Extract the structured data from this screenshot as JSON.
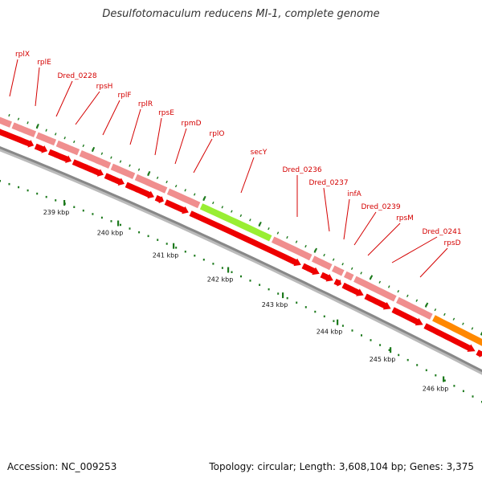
{
  "title": "Desulfotomaculum reducens MI-1, complete genome",
  "footer": {
    "accession": "Accession: NC_009253",
    "summary": "Topology: circular; Length: 3,608,104 bp; Genes: 3,375"
  },
  "colors": {
    "gene_label": "#d40000",
    "pink_feature": "#f08e8e",
    "red_feature": "#ee0000",
    "green_feature": "#99ee33",
    "orange_feature": "#ff8800",
    "backbone": "#888888",
    "tick": "#1d7a1d"
  },
  "genes": [
    {
      "name": "rplX"
    },
    {
      "name": "rplE"
    },
    {
      "name": "Dred_0228"
    },
    {
      "name": "rpsH"
    },
    {
      "name": "rplF"
    },
    {
      "name": "rplR"
    },
    {
      "name": "rpsE"
    },
    {
      "name": "rpmD"
    },
    {
      "name": "rplO"
    },
    {
      "name": "secY"
    },
    {
      "name": "Dred_0236"
    },
    {
      "name": "Dred_0237"
    },
    {
      "name": "infA"
    },
    {
      "name": "Dred_0239"
    },
    {
      "name": "rpsM"
    },
    {
      "name": "Dred_0241"
    },
    {
      "name": "rpsD"
    }
  ],
  "scale": {
    "labels": [
      "239 kbp",
      "240 kbp",
      "241 kbp",
      "242 kbp",
      "243 kbp",
      "244 kbp",
      "245 kbp",
      "246 kbp"
    ]
  }
}
